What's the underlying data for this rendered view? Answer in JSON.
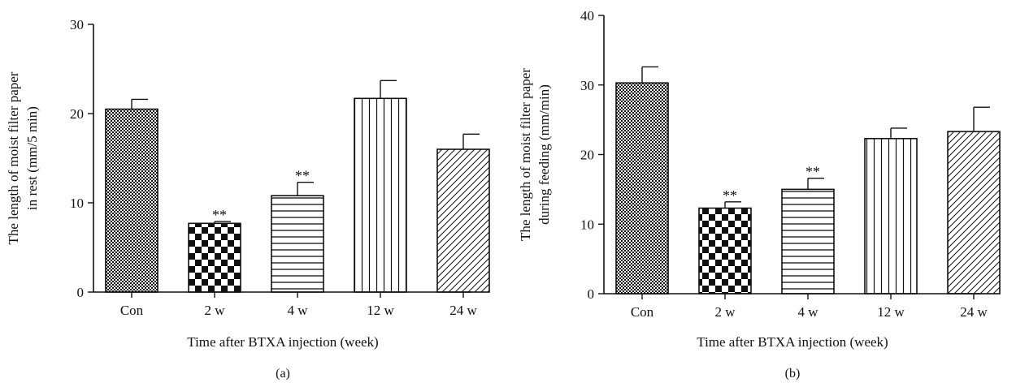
{
  "chart_data": [
    {
      "type": "bar",
      "panel_label": "(a)",
      "categories": [
        "Con",
        "2 w",
        "4 w",
        "12 w",
        "24 w"
      ],
      "values": [
        20.5,
        7.7,
        10.8,
        21.7,
        16.0
      ],
      "errors": [
        1.1,
        0.2,
        1.5,
        2.0,
        1.7
      ],
      "significance": [
        "",
        "**",
        "**",
        "",
        ""
      ],
      "patterns": [
        "fine-checker",
        "large-checker",
        "horizontal-lines",
        "vertical-lines",
        "diagonal-lines"
      ],
      "xlabel": "Time after BTXA injection (week)",
      "ylabel_lines": [
        "The length of moist filter paper",
        "in rest (mm/5 min)"
      ],
      "ylim": [
        0,
        30
      ],
      "yticks": [
        0,
        10,
        20,
        30
      ],
      "grid": false
    },
    {
      "type": "bar",
      "panel_label": "(b)",
      "categories": [
        "Con",
        "2 w",
        "4 w",
        "12 w",
        "24 w"
      ],
      "values": [
        30.3,
        12.3,
        15.0,
        22.3,
        23.3
      ],
      "errors": [
        2.3,
        0.9,
        1.6,
        1.5,
        3.5
      ],
      "significance": [
        "",
        "**",
        "**",
        "",
        ""
      ],
      "patterns": [
        "fine-checker",
        "large-checker",
        "horizontal-lines",
        "vertical-lines",
        "diagonal-lines"
      ],
      "xlabel": "Time after BTXA injection (week)",
      "ylabel_lines": [
        "The length of moist filter paper",
        "during feeding (mm/min)"
      ],
      "ylim": [
        0,
        40
      ],
      "yticks": [
        0,
        10,
        20,
        30,
        40
      ],
      "grid": false
    }
  ]
}
